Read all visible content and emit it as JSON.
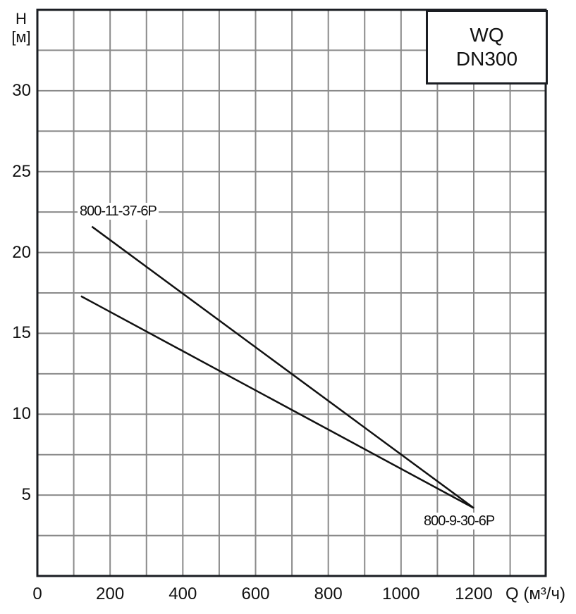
{
  "chart_data": {
    "type": "line",
    "title": "WQ DN300",
    "title_lines": [
      "WQ",
      "DN300"
    ],
    "xlabel": "Q (м³/ч)",
    "xlabel_symbol": "Q",
    "xlabel_unit": "(м³/ч)",
    "ylabel": "H [м]",
    "ylabel_lines": [
      "H",
      "[м]"
    ],
    "xlim": [
      0,
      1400
    ],
    "ylim": [
      0,
      35
    ],
    "x_ticks": [
      0,
      200,
      400,
      600,
      800,
      1000,
      1200
    ],
    "x_tick_labels": [
      "0",
      "200",
      "400",
      "600",
      "800",
      "1000",
      "1200"
    ],
    "y_ticks": [
      5,
      10,
      15,
      20,
      25,
      30
    ],
    "y_tick_labels": [
      "5",
      "10",
      "15",
      "20",
      "25",
      "30"
    ],
    "x_grid_step": 100,
    "y_grid_step": 2.5,
    "grid": true,
    "legend_position": "inline labels",
    "series": [
      {
        "name": "800-11-37-6P",
        "x": [
          150,
          1200
        ],
        "y": [
          21.6,
          4.2
        ],
        "label_pos": "start"
      },
      {
        "name": "800-9-30-6P",
        "x": [
          120,
          1200
        ],
        "y": [
          17.3,
          4.2
        ],
        "label_pos": "end"
      }
    ]
  },
  "labels": {
    "curve_upper": "800-11-37-6P",
    "curve_lower": "800-9-30-6P",
    "x_unit": "Q (м³/ч)"
  }
}
